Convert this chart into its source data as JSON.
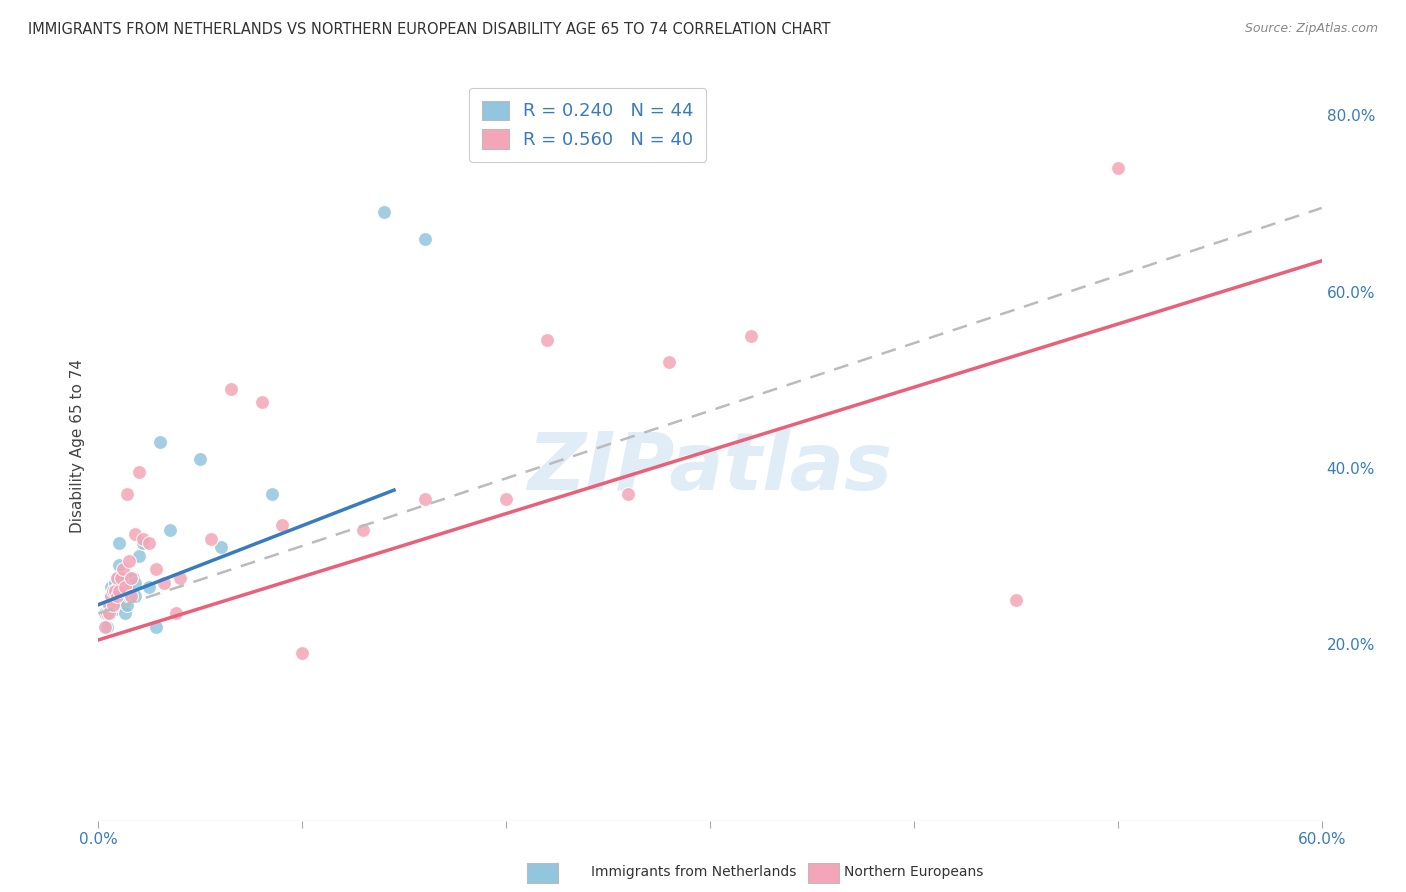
{
  "title": "IMMIGRANTS FROM NETHERLANDS VS NORTHERN EUROPEAN DISABILITY AGE 65 TO 74 CORRELATION CHART",
  "source": "Source: ZipAtlas.com",
  "ylabel": "Disability Age 65 to 74",
  "xlabel": "",
  "xlim": [
    0.0,
    0.6
  ],
  "ylim": [
    0.0,
    0.85
  ],
  "xticks": [
    0.0,
    0.1,
    0.2,
    0.3,
    0.4,
    0.5,
    0.6
  ],
  "xticklabels": [
    "0.0%",
    "",
    "",
    "",
    "",
    "",
    "60.0%"
  ],
  "yticks_right": [
    0.2,
    0.4,
    0.6,
    0.8
  ],
  "ytick_right_labels": [
    "20.0%",
    "40.0%",
    "60.0%",
    "80.0%"
  ],
  "legend1_R": "0.240",
  "legend1_N": "44",
  "legend2_R": "0.560",
  "legend2_N": "40",
  "blue_color": "#92c5de",
  "pink_color": "#f4a6b8",
  "blue_line_color": "#3a7bbf",
  "pink_line_color": "#e8607a",
  "dashed_line_color": "#bbbbbb",
  "watermark": "ZIPatlas",
  "blue_scatter_x": [
    0.003,
    0.004,
    0.005,
    0.005,
    0.006,
    0.006,
    0.007,
    0.007,
    0.008,
    0.008,
    0.008,
    0.009,
    0.009,
    0.01,
    0.01,
    0.01,
    0.01,
    0.011,
    0.011,
    0.012,
    0.012,
    0.012,
    0.013,
    0.013,
    0.014,
    0.014,
    0.015,
    0.015,
    0.016,
    0.016,
    0.017,
    0.018,
    0.018,
    0.02,
    0.022,
    0.025,
    0.028,
    0.03,
    0.035,
    0.05,
    0.06,
    0.085,
    0.14,
    0.16
  ],
  "blue_scatter_y": [
    0.235,
    0.22,
    0.245,
    0.235,
    0.265,
    0.255,
    0.26,
    0.245,
    0.27,
    0.255,
    0.24,
    0.275,
    0.255,
    0.315,
    0.29,
    0.26,
    0.245,
    0.27,
    0.255,
    0.275,
    0.255,
    0.245,
    0.255,
    0.235,
    0.27,
    0.245,
    0.27,
    0.255,
    0.275,
    0.255,
    0.275,
    0.27,
    0.255,
    0.3,
    0.315,
    0.265,
    0.22,
    0.43,
    0.33,
    0.41,
    0.31,
    0.37,
    0.69,
    0.66
  ],
  "pink_scatter_x": [
    0.003,
    0.004,
    0.005,
    0.005,
    0.006,
    0.007,
    0.007,
    0.008,
    0.009,
    0.009,
    0.01,
    0.011,
    0.012,
    0.013,
    0.014,
    0.015,
    0.016,
    0.016,
    0.018,
    0.02,
    0.022,
    0.025,
    0.028,
    0.032,
    0.038,
    0.04,
    0.055,
    0.065,
    0.08,
    0.09,
    0.1,
    0.13,
    0.16,
    0.2,
    0.22,
    0.26,
    0.28,
    0.32,
    0.45,
    0.5
  ],
  "pink_scatter_y": [
    0.22,
    0.235,
    0.245,
    0.235,
    0.255,
    0.26,
    0.245,
    0.26,
    0.275,
    0.255,
    0.26,
    0.275,
    0.285,
    0.265,
    0.37,
    0.295,
    0.275,
    0.255,
    0.325,
    0.395,
    0.32,
    0.315,
    0.285,
    0.27,
    0.235,
    0.275,
    0.32,
    0.49,
    0.475,
    0.335,
    0.19,
    0.33,
    0.365,
    0.365,
    0.545,
    0.37,
    0.52,
    0.55,
    0.25,
    0.74
  ],
  "blue_line_x0": 0.0,
  "blue_line_y0": 0.245,
  "blue_line_x1": 0.145,
  "blue_line_y1": 0.375,
  "pink_line_x0": 0.0,
  "pink_line_y0": 0.205,
  "pink_line_x1": 0.6,
  "pink_line_y1": 0.635,
  "dash_line_x0": 0.0,
  "dash_line_y0": 0.235,
  "dash_line_x1": 0.6,
  "dash_line_y1": 0.695,
  "bg_color": "#ffffff",
  "grid_color": "#e0e0e0"
}
